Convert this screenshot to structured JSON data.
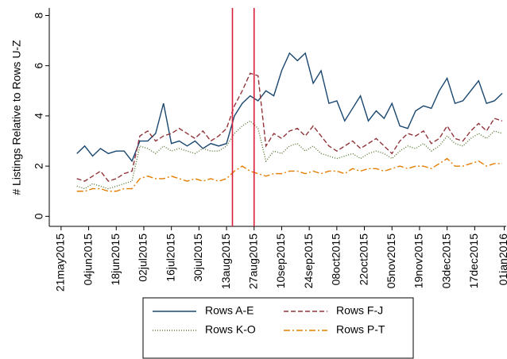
{
  "chart_data": {
    "type": "line",
    "y_label": "# Listings Relative to Rows U-Z",
    "x": [
      "2015-05-29",
      "2015-06-02",
      "2015-06-06",
      "2015-06-10",
      "2015-06-14",
      "2015-06-18",
      "2015-06-22",
      "2015-06-26",
      "2015-06-30",
      "2015-07-04",
      "2015-07-08",
      "2015-07-12",
      "2015-07-16",
      "2015-07-20",
      "2015-07-24",
      "2015-07-28",
      "2015-08-01",
      "2015-08-05",
      "2015-08-09",
      "2015-08-13",
      "2015-08-17",
      "2015-08-21",
      "2015-08-25",
      "2015-08-29",
      "2015-09-02",
      "2015-09-06",
      "2015-09-10",
      "2015-09-14",
      "2015-09-18",
      "2015-09-22",
      "2015-09-26",
      "2015-09-30",
      "2015-10-04",
      "2015-10-08",
      "2015-10-12",
      "2015-10-16",
      "2015-10-20",
      "2015-10-24",
      "2015-10-28",
      "2015-11-01",
      "2015-11-05",
      "2015-11-09",
      "2015-11-13",
      "2015-11-17",
      "2015-11-21",
      "2015-11-25",
      "2015-11-29",
      "2015-12-03",
      "2015-12-07",
      "2015-12-11",
      "2015-12-15",
      "2015-12-19",
      "2015-12-23",
      "2015-12-27",
      "2015-12-31"
    ],
    "series": [
      {
        "name": "Rows A-E",
        "color": "#1a476f",
        "style": "solid",
        "values": [
          2.5,
          2.8,
          2.4,
          2.7,
          2.5,
          2.6,
          2.6,
          2.2,
          3.0,
          3.0,
          3.3,
          4.5,
          2.9,
          3.0,
          2.8,
          3.0,
          2.7,
          2.9,
          2.8,
          2.9,
          4.0,
          4.5,
          4.8,
          4.6,
          5.0,
          4.8,
          5.8,
          6.5,
          6.2,
          6.5,
          5.3,
          5.8,
          4.5,
          4.6,
          3.8,
          4.3,
          4.8,
          3.8,
          4.2,
          3.9,
          4.5,
          3.6,
          3.5,
          4.2,
          4.4,
          4.3,
          5.0,
          5.5,
          4.5,
          4.6,
          5.0,
          5.4,
          4.5,
          4.6,
          4.9
        ]
      },
      {
        "name": "Rows F-J",
        "color": "#90353b",
        "style": "dash",
        "values": [
          1.5,
          1.4,
          1.6,
          1.8,
          1.4,
          1.5,
          1.7,
          1.8,
          3.2,
          3.4,
          3.0,
          3.2,
          3.3,
          3.5,
          3.3,
          3.1,
          3.4,
          3.0,
          3.2,
          3.5,
          4.4,
          5.0,
          5.7,
          5.6,
          2.8,
          3.3,
          3.1,
          3.4,
          3.5,
          3.2,
          3.6,
          3.2,
          2.8,
          2.6,
          2.8,
          3.0,
          2.7,
          2.9,
          3.1,
          2.8,
          2.5,
          3.0,
          3.3,
          3.2,
          3.4,
          2.9,
          3.1,
          3.6,
          3.1,
          3.0,
          3.4,
          3.7,
          3.4,
          3.9,
          3.8
        ]
      },
      {
        "name": "Rows K-O",
        "color": "#55752f",
        "style": "dot",
        "values": [
          1.2,
          1.1,
          1.3,
          1.2,
          1.1,
          1.2,
          1.3,
          1.4,
          2.8,
          2.7,
          2.5,
          2.8,
          2.6,
          2.7,
          2.6,
          2.5,
          2.7,
          2.6,
          2.6,
          2.8,
          3.3,
          3.6,
          3.8,
          3.5,
          2.2,
          2.6,
          2.5,
          2.8,
          2.9,
          2.6,
          2.8,
          2.5,
          2.4,
          2.3,
          2.4,
          2.5,
          2.3,
          2.5,
          2.6,
          2.5,
          2.3,
          2.6,
          2.8,
          2.7,
          2.9,
          2.6,
          2.8,
          3.2,
          2.9,
          2.8,
          3.1,
          3.3,
          3.1,
          3.4,
          3.3
        ]
      },
      {
        "name": "Rows P-T",
        "color": "#e37e00",
        "style": "dashdot",
        "values": [
          1.0,
          1.0,
          1.1,
          1.1,
          1.0,
          1.0,
          1.1,
          1.1,
          1.5,
          1.6,
          1.5,
          1.5,
          1.6,
          1.5,
          1.4,
          1.5,
          1.4,
          1.5,
          1.4,
          1.5,
          1.8,
          2.0,
          1.8,
          1.7,
          1.6,
          1.7,
          1.7,
          1.8,
          1.8,
          1.7,
          1.8,
          1.7,
          1.8,
          1.8,
          1.7,
          1.9,
          1.8,
          1.9,
          1.9,
          1.8,
          1.9,
          2.0,
          1.9,
          2.0,
          2.0,
          1.9,
          2.1,
          2.3,
          2.0,
          2.0,
          2.1,
          2.2,
          2.0,
          2.1,
          2.1
        ]
      }
    ],
    "xlim": [
      "2015-05-15",
      "2016-01-02"
    ],
    "xticks": [
      {
        "value": "2015-05-21",
        "label": "21may2015"
      },
      {
        "value": "2015-06-04",
        "label": "04jun2015"
      },
      {
        "value": "2015-06-18",
        "label": "18jun2015"
      },
      {
        "value": "2015-07-02",
        "label": "02jul2015"
      },
      {
        "value": "2015-07-16",
        "label": "16jul2015"
      },
      {
        "value": "2015-07-30",
        "label": "30jul2015"
      },
      {
        "value": "2015-08-13",
        "label": "13aug2015"
      },
      {
        "value": "2015-08-27",
        "label": "27aug2015"
      },
      {
        "value": "2015-09-10",
        "label": "10sep2015"
      },
      {
        "value": "2015-09-24",
        "label": "24sep2015"
      },
      {
        "value": "2015-10-08",
        "label": "08oct2015"
      },
      {
        "value": "2015-10-22",
        "label": "22oct2015"
      },
      {
        "value": "2015-11-05",
        "label": "05nov2015"
      },
      {
        "value": "2015-11-19",
        "label": "19nov2015"
      },
      {
        "value": "2015-12-03",
        "label": "03dec2015"
      },
      {
        "value": "2015-12-17",
        "label": "17dec2015"
      },
      {
        "value": "2016-01-01",
        "label": "01jan2016"
      }
    ],
    "ylim": [
      -0.4,
      8.3
    ],
    "yticks": [
      0,
      2,
      4,
      6,
      8
    ],
    "vlines": [
      "2015-08-16",
      "2015-08-27"
    ],
    "vline_color": "#d8203c",
    "grid": false,
    "legend": "bottom"
  }
}
